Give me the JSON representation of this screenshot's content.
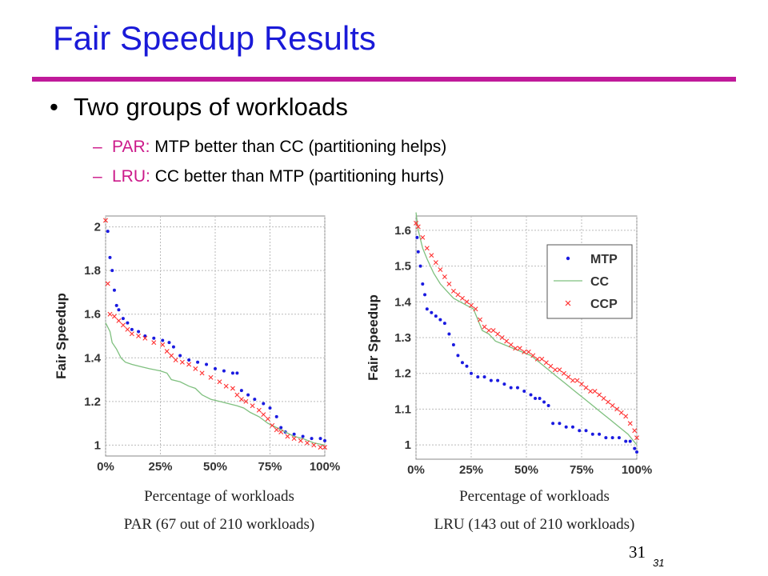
{
  "slide": {
    "title": "Fair Speedup Results",
    "bullet": "Two groups of workloads",
    "bullet_glyph": "•",
    "sub_glyph": "–",
    "subbullets": [
      {
        "key": "PAR:",
        "text": " MTP better than CC (partitioning helps)"
      },
      {
        "key": "LRU:",
        "text": " CC better than MTP (partitioning hurts)"
      }
    ],
    "page_number": "31",
    "page_number_small": "31"
  },
  "colors": {
    "title": "#1a1ad8",
    "rule": "#c01a9a",
    "accent": "#cc1a8a",
    "mtp": "#1a1ae0",
    "cc": "#7fc07f",
    "ccp": "#ff3030"
  },
  "chart_data": [
    {
      "type": "line",
      "title": "",
      "ylabel": "Fair Speedup",
      "xlabel_caption": "Percentage of workloads",
      "subtitle_caption": "PAR (67 out of 210 workloads)",
      "xlim": [
        0,
        100
      ],
      "ylim": [
        0.95,
        2.05
      ],
      "yticks": [
        1,
        1.2,
        1.4,
        1.6,
        1.8,
        2
      ],
      "ytick_labels": [
        "1",
        "1.2",
        "1.4",
        "1.6",
        "1.8",
        "2"
      ],
      "xticks": [
        0,
        25,
        50,
        75,
        100
      ],
      "xtick_labels": [
        "0%",
        "25%",
        "50%",
        "75%",
        "100%"
      ],
      "grid": true,
      "legend": "none",
      "series": [
        {
          "marker": "dot",
          "points": [
            [
              1,
              1.98
            ],
            [
              2,
              1.86
            ],
            [
              3,
              1.8
            ],
            [
              4,
              1.71
            ],
            [
              5,
              1.64
            ],
            [
              6,
              1.62
            ],
            [
              8,
              1.58
            ],
            [
              10,
              1.56
            ],
            [
              12,
              1.53
            ],
            [
              15,
              1.52
            ],
            [
              18,
              1.5
            ],
            [
              22,
              1.49
            ],
            [
              26,
              1.48
            ],
            [
              29,
              1.47
            ],
            [
              31,
              1.45
            ],
            [
              34,
              1.41
            ],
            [
              38,
              1.39
            ],
            [
              42,
              1.38
            ],
            [
              46,
              1.37
            ],
            [
              50,
              1.35
            ],
            [
              54,
              1.34
            ],
            [
              58,
              1.33
            ],
            [
              60,
              1.33
            ],
            [
              62,
              1.25
            ],
            [
              65,
              1.23
            ],
            [
              68,
              1.21
            ],
            [
              72,
              1.19
            ],
            [
              75,
              1.17
            ],
            [
              78,
              1.13
            ],
            [
              80,
              1.08
            ],
            [
              82,
              1.06
            ],
            [
              86,
              1.05
            ],
            [
              90,
              1.04
            ],
            [
              94,
              1.03
            ],
            [
              98,
              1.03
            ],
            [
              100,
              1.02
            ]
          ]
        },
        {
          "marker": "line",
          "points": [
            [
              0,
              1.56
            ],
            [
              2,
              1.52
            ],
            [
              3,
              1.47
            ],
            [
              5,
              1.44
            ],
            [
              7,
              1.4
            ],
            [
              9,
              1.38
            ],
            [
              12,
              1.37
            ],
            [
              16,
              1.36
            ],
            [
              20,
              1.35
            ],
            [
              25,
              1.34
            ],
            [
              28,
              1.33
            ],
            [
              30,
              1.3
            ],
            [
              34,
              1.29
            ],
            [
              38,
              1.27
            ],
            [
              41,
              1.26
            ],
            [
              44,
              1.23
            ],
            [
              48,
              1.21
            ],
            [
              52,
              1.2
            ],
            [
              56,
              1.19
            ],
            [
              60,
              1.18
            ],
            [
              63,
              1.17
            ],
            [
              66,
              1.15
            ],
            [
              70,
              1.13
            ],
            [
              74,
              1.1
            ],
            [
              78,
              1.08
            ],
            [
              82,
              1.06
            ],
            [
              86,
              1.04
            ],
            [
              90,
              1.03
            ],
            [
              95,
              1.01
            ],
            [
              100,
              1.0
            ]
          ]
        },
        {
          "marker": "x",
          "points": [
            [
              0,
              2.03
            ],
            [
              1,
              1.74
            ],
            [
              2,
              1.6
            ],
            [
              4,
              1.59
            ],
            [
              6,
              1.57
            ],
            [
              8,
              1.55
            ],
            [
              10,
              1.53
            ],
            [
              12,
              1.51
            ],
            [
              15,
              1.5
            ],
            [
              18,
              1.49
            ],
            [
              22,
              1.47
            ],
            [
              26,
              1.46
            ],
            [
              28,
              1.43
            ],
            [
              30,
              1.41
            ],
            [
              32,
              1.39
            ],
            [
              35,
              1.38
            ],
            [
              38,
              1.37
            ],
            [
              41,
              1.35
            ],
            [
              44,
              1.33
            ],
            [
              48,
              1.31
            ],
            [
              52,
              1.29
            ],
            [
              55,
              1.27
            ],
            [
              58,
              1.26
            ],
            [
              60,
              1.23
            ],
            [
              62,
              1.21
            ],
            [
              64,
              1.2
            ],
            [
              67,
              1.18
            ],
            [
              70,
              1.16
            ],
            [
              72,
              1.14
            ],
            [
              74,
              1.12
            ],
            [
              76,
              1.09
            ],
            [
              78,
              1.07
            ],
            [
              80,
              1.06
            ],
            [
              83,
              1.04
            ],
            [
              86,
              1.03
            ],
            [
              89,
              1.02
            ],
            [
              92,
              1.01
            ],
            [
              95,
              1.0
            ],
            [
              98,
              0.99
            ],
            [
              100,
              0.99
            ]
          ]
        }
      ]
    },
    {
      "type": "line",
      "title": "",
      "ylabel": "Fair Speedup",
      "xlabel_caption": "Percentage of workloads",
      "subtitle_caption": "LRU (143 out of 210 workloads)",
      "xlim": [
        0,
        100
      ],
      "ylim": [
        0.96,
        1.64
      ],
      "yticks": [
        1,
        1.1,
        1.2,
        1.3,
        1.4,
        1.5,
        1.6
      ],
      "ytick_labels": [
        "1",
        "1.1",
        "1.2",
        "1.3",
        "1.4",
        "1.5",
        "1.6"
      ],
      "xticks": [
        0,
        25,
        50,
        75,
        100
      ],
      "xtick_labels": [
        "0%",
        "25%",
        "50%",
        "75%",
        "100%"
      ],
      "grid": true,
      "legend": "top-right",
      "series": [
        {
          "name": "MTP",
          "marker": "dot",
          "points": [
            [
              0.5,
              1.58
            ],
            [
              1,
              1.54
            ],
            [
              2,
              1.5
            ],
            [
              3,
              1.45
            ],
            [
              4,
              1.42
            ],
            [
              5,
              1.38
            ],
            [
              7,
              1.37
            ],
            [
              9,
              1.36
            ],
            [
              11,
              1.35
            ],
            [
              13,
              1.34
            ],
            [
              15,
              1.31
            ],
            [
              17,
              1.28
            ],
            [
              19,
              1.25
            ],
            [
              21,
              1.23
            ],
            [
              23,
              1.22
            ],
            [
              25,
              1.2
            ],
            [
              28,
              1.19
            ],
            [
              31,
              1.19
            ],
            [
              34,
              1.18
            ],
            [
              37,
              1.18
            ],
            [
              40,
              1.17
            ],
            [
              43,
              1.16
            ],
            [
              46,
              1.16
            ],
            [
              49,
              1.15
            ],
            [
              52,
              1.14
            ],
            [
              54,
              1.13
            ],
            [
              56,
              1.13
            ],
            [
              58,
              1.12
            ],
            [
              60,
              1.11
            ],
            [
              62,
              1.06
            ],
            [
              65,
              1.06
            ],
            [
              68,
              1.05
            ],
            [
              71,
              1.05
            ],
            [
              74,
              1.04
            ],
            [
              77,
              1.04
            ],
            [
              80,
              1.03
            ],
            [
              83,
              1.03
            ],
            [
              86,
              1.02
            ],
            [
              89,
              1.02
            ],
            [
              92,
              1.02
            ],
            [
              95,
              1.01
            ],
            [
              97,
              1.01
            ],
            [
              99,
              0.99
            ],
            [
              100,
              0.98
            ]
          ]
        },
        {
          "name": "CC",
          "marker": "line",
          "points": [
            [
              0,
              1.65
            ],
            [
              1,
              1.6
            ],
            [
              3,
              1.55
            ],
            [
              5,
              1.52
            ],
            [
              8,
              1.48
            ],
            [
              11,
              1.45
            ],
            [
              14,
              1.43
            ],
            [
              17,
              1.41
            ],
            [
              20,
              1.4
            ],
            [
              23,
              1.39
            ],
            [
              26,
              1.38
            ],
            [
              28,
              1.35
            ],
            [
              30,
              1.32
            ],
            [
              33,
              1.31
            ],
            [
              36,
              1.29
            ],
            [
              40,
              1.28
            ],
            [
              44,
              1.27
            ],
            [
              48,
              1.26
            ],
            [
              52,
              1.25
            ],
            [
              56,
              1.23
            ],
            [
              60,
              1.21
            ],
            [
              64,
              1.19
            ],
            [
              68,
              1.17
            ],
            [
              72,
              1.15
            ],
            [
              76,
              1.13
            ],
            [
              80,
              1.11
            ],
            [
              84,
              1.09
            ],
            [
              88,
              1.07
            ],
            [
              92,
              1.05
            ],
            [
              96,
              1.03
            ],
            [
              100,
              1.0
            ]
          ]
        },
        {
          "name": "CCP",
          "marker": "x",
          "points": [
            [
              0,
              1.62
            ],
            [
              1,
              1.61
            ],
            [
              3,
              1.58
            ],
            [
              5,
              1.55
            ],
            [
              7,
              1.53
            ],
            [
              9,
              1.51
            ],
            [
              11,
              1.49
            ],
            [
              13,
              1.47
            ],
            [
              15,
              1.45
            ],
            [
              17,
              1.43
            ],
            [
              19,
              1.42
            ],
            [
              21,
              1.41
            ],
            [
              23,
              1.4
            ],
            [
              25,
              1.39
            ],
            [
              27,
              1.38
            ],
            [
              29,
              1.35
            ],
            [
              31,
              1.33
            ],
            [
              33,
              1.32
            ],
            [
              35,
              1.32
            ],
            [
              37,
              1.31
            ],
            [
              39,
              1.3
            ],
            [
              41,
              1.29
            ],
            [
              43,
              1.28
            ],
            [
              45,
              1.27
            ],
            [
              47,
              1.27
            ],
            [
              49,
              1.26
            ],
            [
              51,
              1.26
            ],
            [
              53,
              1.25
            ],
            [
              55,
              1.24
            ],
            [
              57,
              1.24
            ],
            [
              59,
              1.23
            ],
            [
              61,
              1.22
            ],
            [
              63,
              1.21
            ],
            [
              65,
              1.21
            ],
            [
              67,
              1.2
            ],
            [
              69,
              1.19
            ],
            [
              71,
              1.18
            ],
            [
              73,
              1.18
            ],
            [
              75,
              1.17
            ],
            [
              77,
              1.16
            ],
            [
              79,
              1.15
            ],
            [
              81,
              1.15
            ],
            [
              83,
              1.14
            ],
            [
              85,
              1.13
            ],
            [
              87,
              1.12
            ],
            [
              89,
              1.11
            ],
            [
              91,
              1.1
            ],
            [
              93,
              1.09
            ],
            [
              95,
              1.08
            ],
            [
              97,
              1.06
            ],
            [
              99,
              1.04
            ],
            [
              100,
              1.02
            ]
          ]
        }
      ]
    }
  ]
}
